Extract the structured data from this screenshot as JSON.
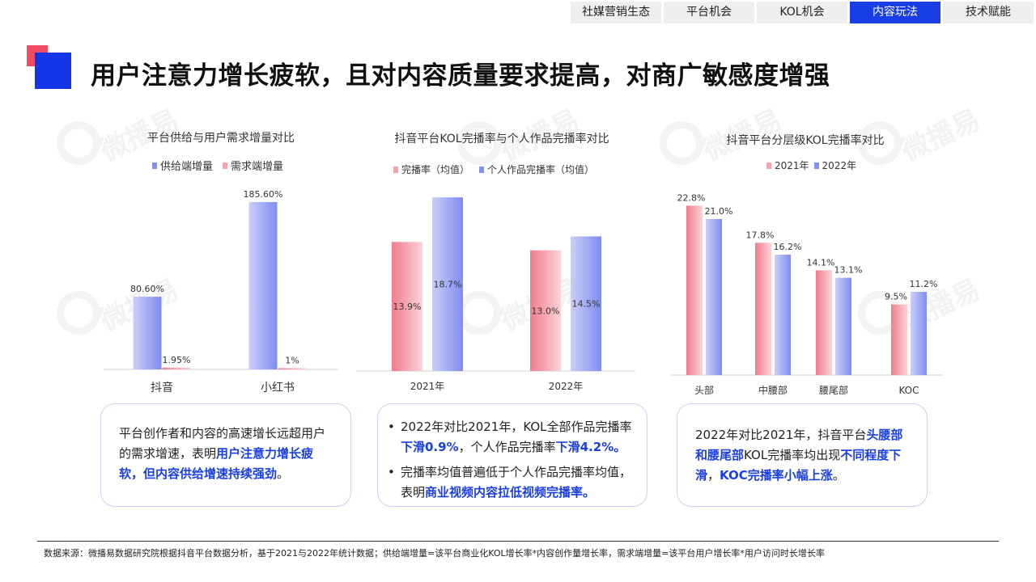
{
  "nav": {
    "tabs": [
      "社媒营销生态",
      "平台机会",
      "KOL机会",
      "内容玩法",
      "技术赋能"
    ],
    "active_index": 3
  },
  "page_title": "用户注意力增长疲软，且对内容质量要求提高，对商广敏感度增强",
  "watermark": "微播易",
  "colors": {
    "blue_bar": "#8592f0",
    "red_bar": "#f5a3ad",
    "accent": "#1a3ee6",
    "logo_red": "#ef4b63",
    "logo_blue": "#1536e6"
  },
  "chart_data": [
    {
      "type": "bar",
      "title": "平台供给与用户需求增量对比",
      "categories": [
        "抖音",
        "小红书"
      ],
      "series": [
        {
          "name": "供给端增量",
          "values": [
            80.6,
            185.6
          ],
          "labels": [
            "80.60%",
            "185.60%"
          ]
        },
        {
          "name": "需求端增量",
          "values": [
            1.95,
            1
          ],
          "labels": [
            "1.95%",
            "1%"
          ]
        }
      ],
      "ylim": [
        0,
        190
      ]
    },
    {
      "type": "bar",
      "title": "抖音平台KOL完播率与个人作品完播率对比",
      "categories": [
        "2021年",
        "2022年"
      ],
      "series": [
        {
          "name": "完播率（均值）",
          "values": [
            13.9,
            13.0
          ],
          "labels": [
            "13.9%",
            "13.0%"
          ]
        },
        {
          "name": "个人作品完播率（均值）",
          "values": [
            18.7,
            14.5
          ],
          "labels": [
            "18.7%",
            "14.5%"
          ]
        }
      ],
      "ylim": [
        0,
        19.5
      ]
    },
    {
      "type": "bar",
      "title": "抖音平台分层级KOL完播率对比",
      "categories": [
        "头部",
        "中腰部",
        "腰尾部",
        "KOC"
      ],
      "series": [
        {
          "name": "2021年",
          "values": [
            22.8,
            17.8,
            14.1,
            9.5
          ],
          "labels": [
            "22.8%",
            "17.8%",
            "14.1%",
            "9.5%"
          ]
        },
        {
          "name": "2022年",
          "values": [
            21.0,
            16.2,
            13.1,
            11.2
          ],
          "labels": [
            "21.0%",
            "16.2%",
            "13.1%",
            "11.2%"
          ]
        }
      ],
      "ylim": [
        0,
        23.5
      ]
    }
  ],
  "boxes": {
    "box1": {
      "t1": "平台创作者和内容的高速增长远超用户的需求增速，表明",
      "t2": "用户注意力增长疲软，但内容供给增速持续强劲",
      "t3": "。"
    },
    "box2": {
      "b1_t1": "2022年对比2021年，KOL全部作品完播率",
      "b1_h1": "下滑0.9%",
      "b1_t2": "，个人作品完播率",
      "b1_h2": "下滑4.2%。",
      "b2_t1": "完播率均值普遍低于个人作品完播率均值，表明",
      "b2_h1": "商业视频内容拉低视频完播率。"
    },
    "box3": {
      "t1": "2022年对比2021年，抖音平台",
      "h1": "头腰部和腰尾部",
      "t2": "KOL完播率均出现",
      "h2": "不同程度下滑",
      "t3": "，",
      "h3": "KOC完播率小幅上涨",
      "t4": "。"
    }
  },
  "footnote": "数据来源：微播易数据研究院根据抖音平台数据分析，基于2021与2022年统计数据；供给端增量=该平台商业化KOL增长率*内容创作量增长率，需求端增量=该平台用户增长率*用户访问时长增长率"
}
